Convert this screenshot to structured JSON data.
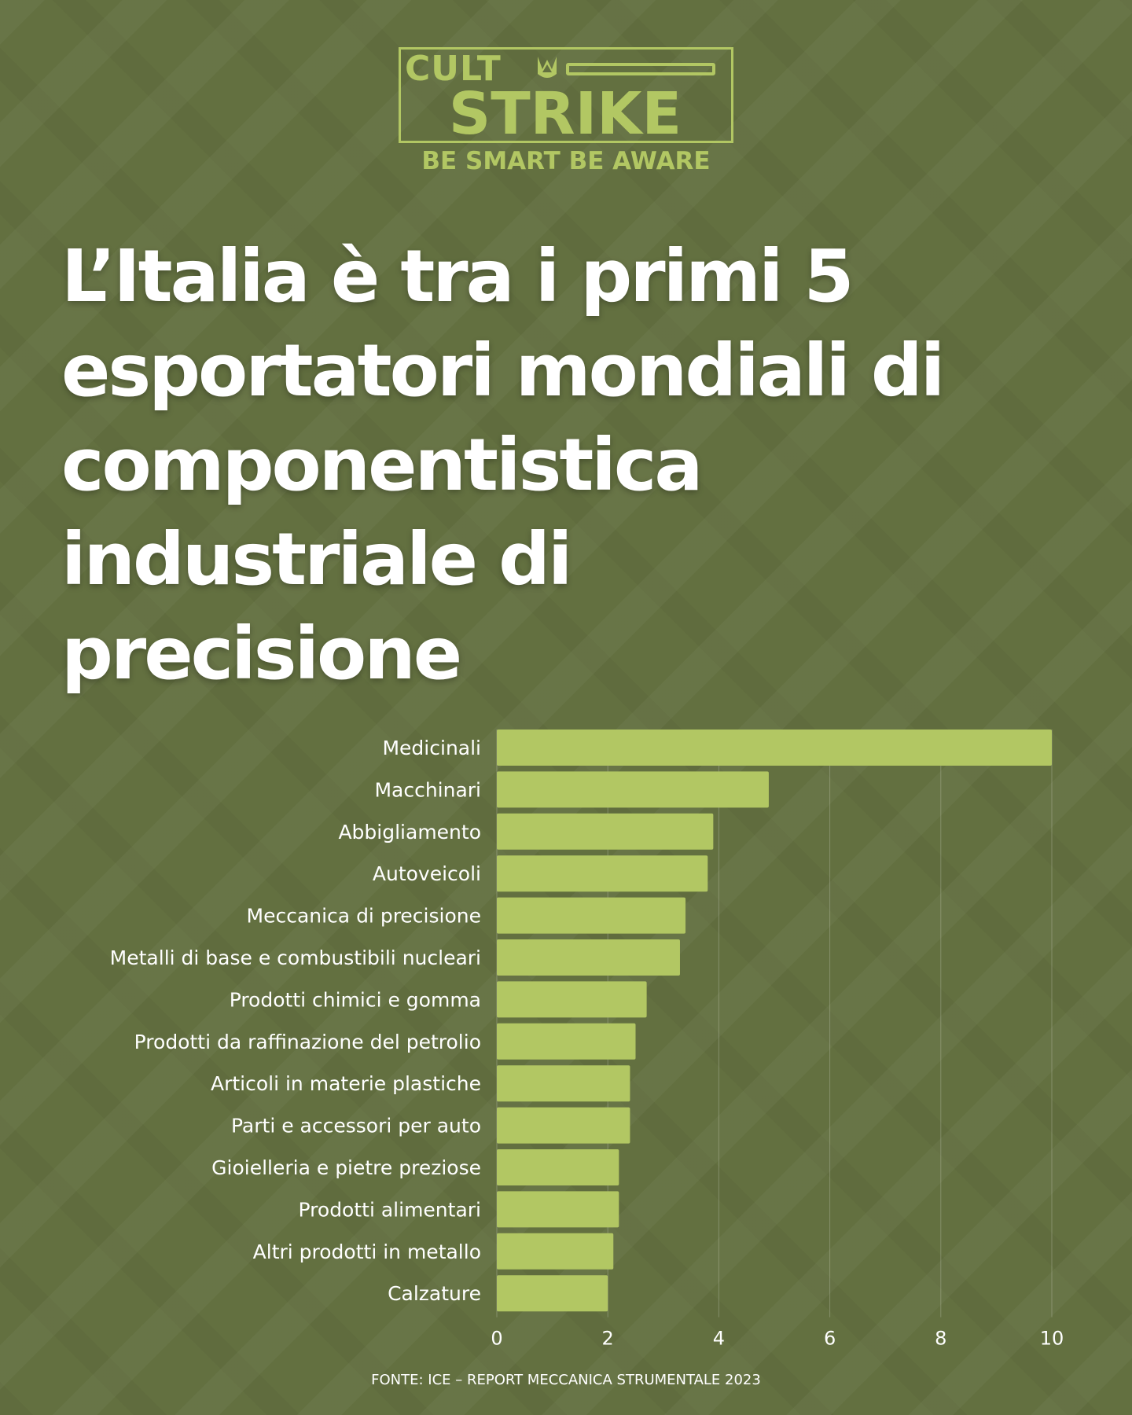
{
  "logo": {
    "word1": "CULT",
    "word2": "STRIKE",
    "tagline": "BE SMART BE AWARE"
  },
  "title": "L’Italia è tra i primi 5\nesportatori mondiali di\ncomponentistica\nindustriale di\nprecisione",
  "source": "FONTE: ICE – REPORT MECCANICA STRUMENTALE 2023",
  "colors": {
    "background": "#637040",
    "bar": "#b2c763",
    "text": "#ffffff"
  },
  "chart_data": {
    "type": "bar",
    "orientation": "horizontal",
    "categories": [
      "Medicinali",
      "Macchinari",
      "Abbigliamento",
      "Autoveicoli",
      "Meccanica di precisione",
      "Metalli di base e combustibili nucleari",
      "Prodotti chimici e gomma",
      "Prodotti da raffinazione del petrolio",
      "Articoli in materie plastiche",
      "Parti e accessori per auto",
      "Gioielleria e pietre preziose",
      "Prodotti alimentari",
      "Altri prodotti in metallo",
      "Calzature"
    ],
    "values": [
      10,
      4.9,
      3.9,
      3.8,
      3.4,
      3.3,
      2.7,
      2.5,
      2.4,
      2.4,
      2.2,
      2.2,
      2.1,
      2.0
    ],
    "xlim": [
      0,
      10
    ],
    "xticks": [
      0,
      2,
      4,
      6,
      8,
      10
    ],
    "grid": true
  }
}
